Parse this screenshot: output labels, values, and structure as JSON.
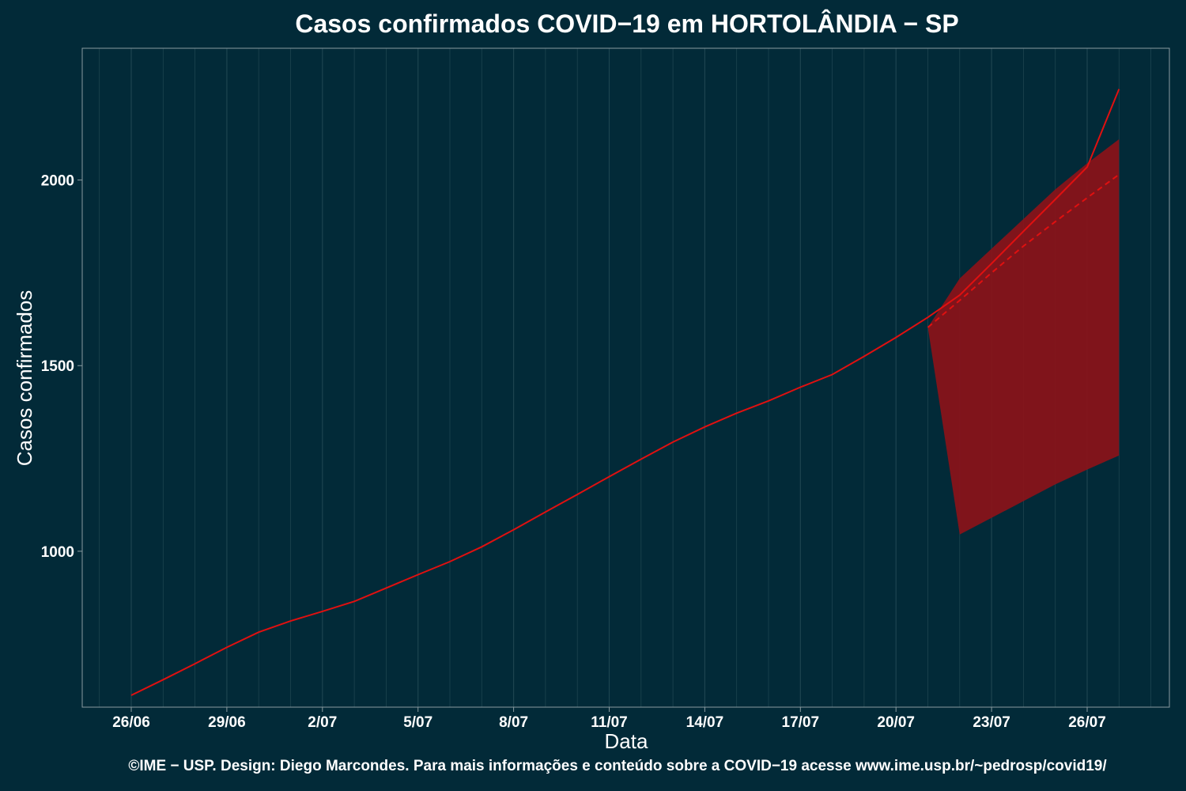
{
  "title": "Casos confirmados COVID−19 em HORTOLÂNDIA − SP",
  "footer": "©IME − USP. Design: Diego Marcondes. Para mais informações e conteúdo sobre a COVID−19 acesse www.ime.usp.br/~pedrosp/covid19/",
  "colors": {
    "background": "#022a38",
    "grid": "#1d4450",
    "frame": "#8a9ba0",
    "line": "#e01010",
    "band": "#8b1219"
  },
  "chart_data": {
    "type": "line",
    "title": "Casos confirmados COVID−19 em HORTOLÂNDIA − SP",
    "xlabel": "Data",
    "ylabel": "Casos confirmados",
    "x_tick_labels": [
      "26/06",
      "29/06",
      "2/07",
      "5/07",
      "8/07",
      "11/07",
      "14/07",
      "17/07",
      "20/07",
      "23/07",
      "26/07"
    ],
    "y_ticks": [
      1000,
      1500,
      2000
    ],
    "ylim": [
      580,
      2355
    ],
    "grid": true,
    "series": [
      {
        "style": "solid",
        "x": [
          "26/06",
          "27/06",
          "28/06",
          "29/06",
          "30/06",
          "01/07",
          "02/07",
          "03/07",
          "04/07",
          "05/07",
          "06/07",
          "07/07",
          "08/07",
          "09/07",
          "10/07",
          "11/07",
          "12/07",
          "13/07",
          "14/07",
          "15/07",
          "16/07",
          "17/07",
          "18/07",
          "19/07",
          "20/07",
          "21/07",
          "22/07",
          "23/07",
          "24/07",
          "25/07",
          "26/07",
          "27/07"
        ],
        "values": [
          612,
          654,
          697,
          741,
          782,
          812,
          838,
          865,
          901,
          937,
          972,
          1012,
          1058,
          1106,
          1153,
          1201,
          1248,
          1294,
          1335,
          1372,
          1405,
          1442,
          1476,
          1525,
          1576,
          1630,
          1690,
          1775,
          1862,
          1948,
          2035,
          2245
        ]
      },
      {
        "style": "dashed",
        "x": [
          "21/07",
          "22/07",
          "23/07",
          "24/07",
          "25/07",
          "26/07",
          "27/07"
        ],
        "values": [
          1603,
          1676,
          1750,
          1822,
          1888,
          1952,
          2015
        ]
      }
    ],
    "band": {
      "x": [
        "21/07",
        "22/07",
        "23/07",
        "24/07",
        "25/07",
        "26/07",
        "27/07"
      ],
      "upper": [
        1603,
        1735,
        1815,
        1895,
        1975,
        2045,
        2110
      ],
      "lower": [
        1603,
        1045,
        1090,
        1135,
        1180,
        1220,
        1258
      ]
    }
  }
}
